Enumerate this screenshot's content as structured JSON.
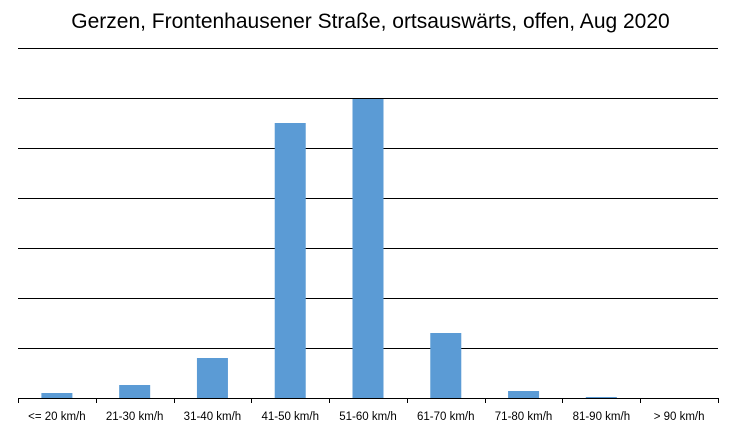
{
  "chart_data": {
    "type": "bar",
    "title": "Gerzen, Frontenhausener Straße, ortsauswärts, offen, Aug 2020",
    "xlabel": "",
    "ylabel": "",
    "categories": [
      "<= 20 km/h",
      "21-30 km/h",
      "31-40 km/h",
      "41-50 km/h",
      "51-60 km/h",
      "61-70 km/h",
      "71-80 km/h",
      "81-90 km/h",
      "> 90 km/h"
    ],
    "values": [
      5,
      13,
      40,
      275,
      299,
      65,
      7,
      1,
      0
    ],
    "ylim": [
      0,
      350
    ],
    "y_tick_step": 50,
    "grid": true,
    "legend": "none",
    "y_tick_labels_visible": false,
    "colors": {
      "bar": "#5b9bd5",
      "grid": "#000000",
      "axis": "#000000"
    }
  }
}
